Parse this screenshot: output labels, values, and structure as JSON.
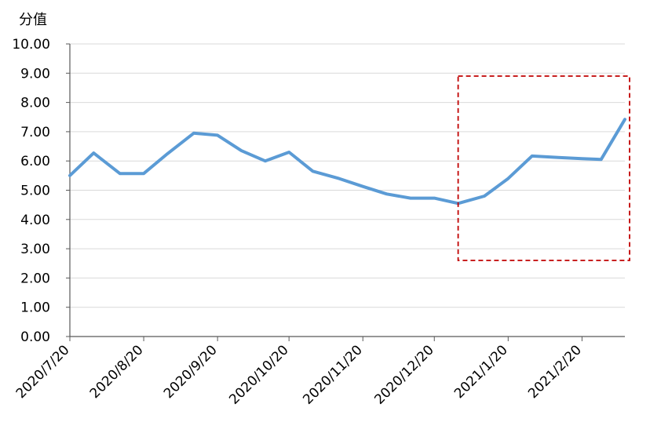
{
  "chart_data": {
    "type": "line",
    "title": "",
    "ylabel": "分值",
    "xlabel": "",
    "ylim": [
      0,
      10
    ],
    "yticks": [
      "0.00",
      "1.00",
      "2.00",
      "3.00",
      "4.00",
      "5.00",
      "6.00",
      "7.00",
      "8.00",
      "9.00",
      "10.00"
    ],
    "xticks": [
      "2020/7/20",
      "2020/8/20",
      "2020/9/20",
      "2020/10/20",
      "2020/11/20",
      "2020/12/20",
      "2021/1/20",
      "2021/2/20"
    ],
    "grid": true,
    "legend": "none",
    "series": [
      {
        "color": "#5b9bd5",
        "x": [
          "2020/7/20",
          "2020/7/30",
          "2020/8/10",
          "2020/8/20",
          "2020/8/30",
          "2020/9/10",
          "2020/9/20",
          "2020/9/30",
          "2020/10/10",
          "2020/10/20",
          "2020/10/30",
          "2020/11/10",
          "2020/11/20",
          "2020/11/30",
          "2020/12/10",
          "2020/12/20",
          "2020/12/30",
          "2021/1/10",
          "2021/1/20",
          "2021/1/30",
          "2021/2/10",
          "2021/2/20",
          "2021/2/28",
          "2021/3/10"
        ],
        "values": [
          5.5,
          6.27,
          5.57,
          5.57,
          6.25,
          6.95,
          6.88,
          6.35,
          6.0,
          6.3,
          5.65,
          5.4,
          5.13,
          4.87,
          4.73,
          4.73,
          4.55,
          4.8,
          5.4,
          6.17,
          6.12,
          6.08,
          6.05,
          7.42
        ]
      }
    ],
    "annotation": {
      "type": "dashed-rect",
      "color": "#c00000",
      "x_range": [
        "2020/12/30",
        "2021/3/10"
      ],
      "y_range": [
        2.6,
        8.9
      ]
    }
  }
}
